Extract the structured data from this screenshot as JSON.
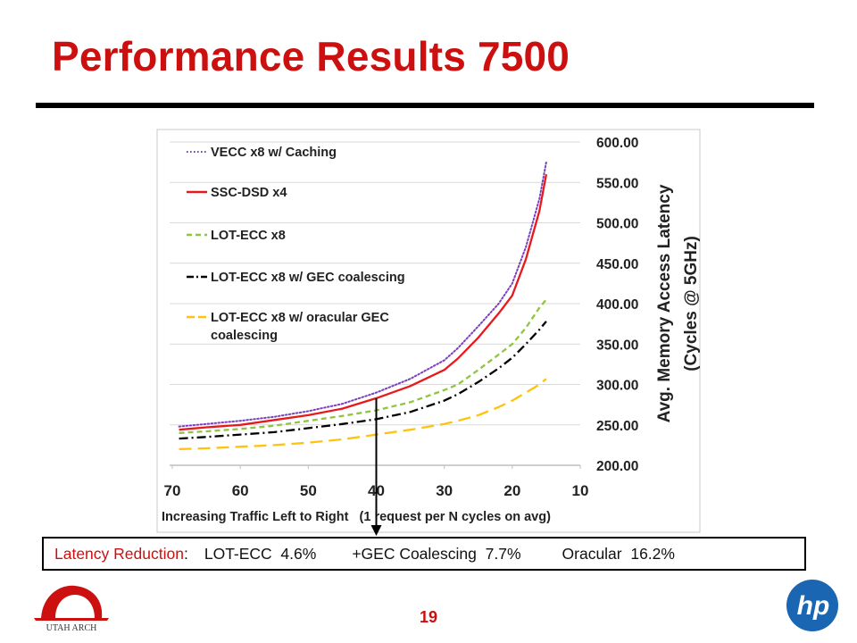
{
  "slide": {
    "title": "Performance Results 7500",
    "page_number": "19"
  },
  "logos": {
    "left_text": "UTAH ARCH",
    "right_text": "hp"
  },
  "reduction": {
    "label": "Latency Reduction",
    "colon": ":",
    "items": [
      "LOT-ECC  4.6%",
      "+GEC Coalescing  7.7%",
      "Oracular  16.2%"
    ]
  },
  "colors": {
    "title_red": "#cc1010",
    "vecc": "#7b3fbf",
    "ssc": "#e8191c",
    "lot": "#8dc63f",
    "gec": "#000000",
    "oracular": "#ffc20e"
  },
  "chart_data": {
    "type": "line",
    "xlabel": "Increasing Traffic Left to Right   (1 request per N cycles on avg)",
    "ylabel_line1": "Avg. Memory Access Latency",
    "ylabel_line2": "(Cycles @ 5GHz)",
    "x_ticks": [
      "70",
      "60",
      "50",
      "40",
      "30",
      "20",
      "10"
    ],
    "y_ticks": [
      "200.00",
      "250.00",
      "300.00",
      "350.00",
      "400.00",
      "450.00",
      "500.00",
      "550.00",
      "600.00"
    ],
    "xlim": [
      70,
      10
    ],
    "ylim": [
      200,
      600
    ],
    "x_reversed": true,
    "y_axis_side": "right",
    "grid": "horizontal",
    "legend_position": "top-left",
    "annotation_x": 40,
    "x": [
      69,
      65,
      60,
      55,
      50,
      45,
      40,
      35,
      30,
      28,
      25,
      22,
      20,
      18,
      16,
      15
    ],
    "series": [
      {
        "name": "VECC x8 w/ Caching",
        "style": "dotted",
        "color": "#7b3fbf",
        "values": [
          248,
          251,
          255,
          260,
          267,
          276,
          290,
          307,
          330,
          345,
          372,
          400,
          425,
          470,
          530,
          575
        ]
      },
      {
        "name": "SSC-DSD x4",
        "style": "solid",
        "color": "#e8191c",
        "values": [
          244,
          247,
          250,
          256,
          262,
          270,
          283,
          298,
          318,
          332,
          358,
          388,
          410,
          455,
          515,
          560
        ]
      },
      {
        "name": "LOT-ECC x8",
        "style": "dashed",
        "color": "#8dc63f",
        "values": [
          240,
          242,
          245,
          249,
          255,
          261,
          268,
          278,
          293,
          300,
          318,
          337,
          350,
          370,
          395,
          405
        ]
      },
      {
        "name": "LOT-ECC x8 w/ GEC coalescing",
        "style": "dashdot",
        "color": "#000000",
        "values": [
          233,
          235,
          238,
          241,
          246,
          251,
          257,
          266,
          280,
          288,
          303,
          320,
          333,
          350,
          368,
          378
        ]
      },
      {
        "name": "LOT-ECC x8 w/ oracular GEC",
        "name_line2": "coalescing",
        "style": "longdash",
        "color": "#ffc20e",
        "values": [
          220,
          221,
          223,
          225,
          228,
          232,
          238,
          244,
          251,
          255,
          262,
          272,
          280,
          290,
          300,
          307
        ]
      }
    ]
  }
}
